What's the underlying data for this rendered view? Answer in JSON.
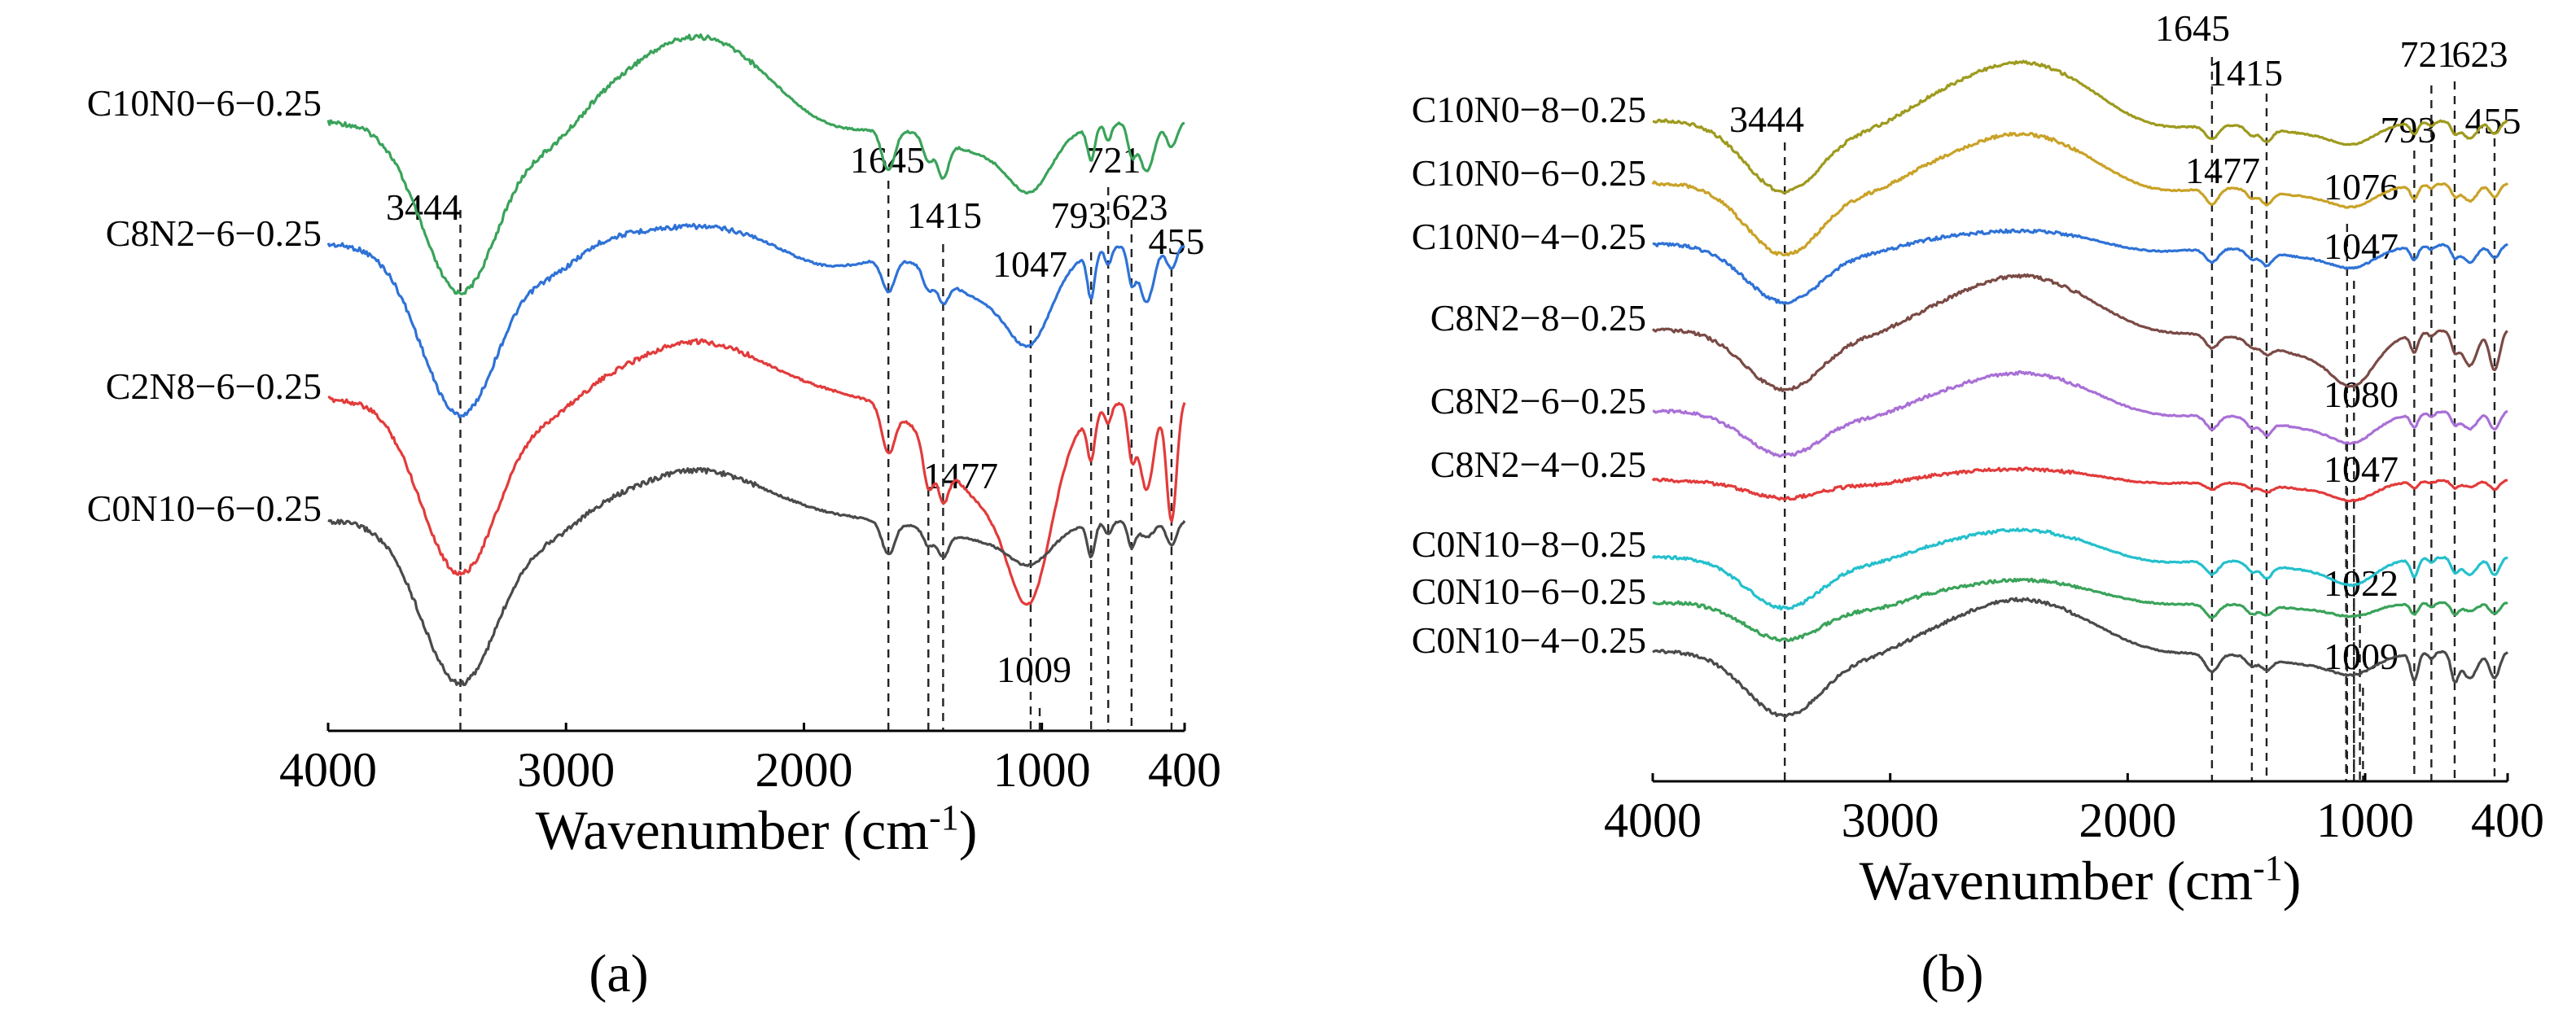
{
  "chart_data": [
    {
      "type": "line",
      "panel_label": "(a)",
      "xlabel": "Wavenumber (cm",
      "xlabel_superscript": "-1",
      "xlabel_close": ")",
      "xlim": [
        4000,
        400
      ],
      "xticks": [
        4000,
        3000,
        2000,
        1000,
        400
      ],
      "series": [
        {
          "name": "C10N0−6−0.25",
          "color": "#3aa35a"
        },
        {
          "name": "C8N2−6−0.25",
          "color": "#2f72d6"
        },
        {
          "name": "C2N8−6−0.25",
          "color": "#e23b3b"
        },
        {
          "name": "C0N10−6−0.25",
          "color": "#4a4a4a"
        }
      ],
      "peak_markers": [
        {
          "label": "3444",
          "x": 3444
        },
        {
          "label": "1645",
          "x": 1645
        },
        {
          "label": "1477",
          "x": 1477
        },
        {
          "label": "1415",
          "x": 1415
        },
        {
          "label": "1047",
          "x": 1047
        },
        {
          "label": "1009",
          "x": 1009
        },
        {
          "label": "793",
          "x": 793
        },
        {
          "label": "721",
          "x": 721
        },
        {
          "label": "623",
          "x": 623
        },
        {
          "label": "455",
          "x": 455
        }
      ]
    },
    {
      "type": "line",
      "panel_label": "(b)",
      "xlabel": "Wavenumber (cm",
      "xlabel_superscript": "-1",
      "xlabel_close": ")",
      "xlim": [
        4000,
        400
      ],
      "xticks": [
        4000,
        3000,
        2000,
        1000,
        400
      ],
      "series": [
        {
          "name": "C10N0−8−0.25",
          "color": "#9e9a1e"
        },
        {
          "name": "C10N0−6−0.25",
          "color": "#c9a227"
        },
        {
          "name": "C10N0−4−0.25",
          "color": "#2f72d6"
        },
        {
          "name": "C8N2−8−0.25",
          "color": "#7a4a45"
        },
        {
          "name": "C8N2−6−0.25",
          "color": "#a970d6"
        },
        {
          "name": "C8N2−4−0.25",
          "color": "#e23b3b"
        },
        {
          "name": "C0N10−8−0.25",
          "color": "#24c0cc"
        },
        {
          "name": "C0N10−6−0.25",
          "color": "#3aa35a"
        },
        {
          "name": "C0N10−4−0.25",
          "color": "#4a4a4a"
        }
      ],
      "peak_markers": [
        {
          "label": "3444",
          "x": 3444
        },
        {
          "label": "1645",
          "x": 1645
        },
        {
          "label": "1477",
          "x": 1477
        },
        {
          "label": "1415",
          "x": 1415
        },
        {
          "label": "1076",
          "x": 1076
        },
        {
          "label": "1047",
          "x": 1047
        },
        {
          "label": "1080",
          "x": 1080
        },
        {
          "label": "1047",
          "x": 1047
        },
        {
          "label": "1022",
          "x": 1022
        },
        {
          "label": "1009",
          "x": 1009
        },
        {
          "label": "793",
          "x": 793
        },
        {
          "label": "721",
          "x": 721
        },
        {
          "label": "623",
          "x": 623
        },
        {
          "label": "455",
          "x": 455
        }
      ]
    }
  ]
}
